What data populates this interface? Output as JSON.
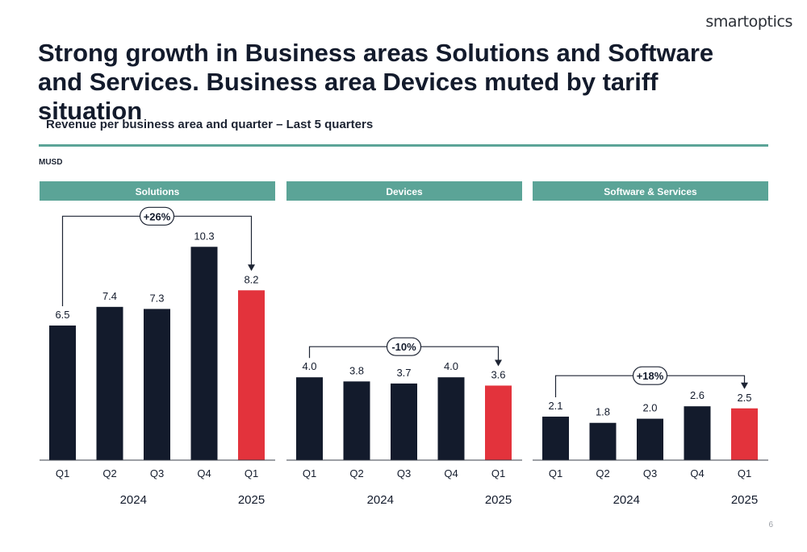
{
  "logo": "smartoptics",
  "title": "Strong growth in Business areas Solutions and Software and Services. Business area Devices muted by tariff situation",
  "subtitle": "Revenue per business area and quarter – Last 5 quarters",
  "unit": "MUSD",
  "page_number": "6",
  "colors": {
    "bar": "#131b2c",
    "highlight": "#e3333c",
    "header": "#5ba497",
    "header_text": "#ffffff",
    "text": "#131b2c"
  },
  "chart_data": [
    {
      "type": "bar",
      "title": "Solutions",
      "categories": [
        "Q1",
        "Q2",
        "Q3",
        "Q4",
        "Q1"
      ],
      "years": [
        {
          "label": "2024",
          "span": [
            0,
            3
          ]
        },
        {
          "label": "2025",
          "span": [
            4,
            4
          ]
        }
      ],
      "values": [
        6.5,
        7.4,
        7.3,
        10.3,
        8.2
      ],
      "value_labels": [
        "6.5",
        "7.4",
        "7.3",
        "10.3",
        "8.2"
      ],
      "highlight_index": 4,
      "growth": {
        "label": "+26%",
        "from_index": 0,
        "to_index": 4
      }
    },
    {
      "type": "bar",
      "title": "Devices",
      "categories": [
        "Q1",
        "Q2",
        "Q3",
        "Q4",
        "Q1"
      ],
      "years": [
        {
          "label": "2024",
          "span": [
            0,
            3
          ]
        },
        {
          "label": "2025",
          "span": [
            4,
            4
          ]
        }
      ],
      "values": [
        4.0,
        3.8,
        3.7,
        4.0,
        3.6
      ],
      "value_labels": [
        "4.0",
        "3.8",
        "3.7",
        "4.0",
        "3.6"
      ],
      "highlight_index": 4,
      "growth": {
        "label": "-10%",
        "from_index": 0,
        "to_index": 4
      }
    },
    {
      "type": "bar",
      "title": "Software & Services",
      "categories": [
        "Q1",
        "Q2",
        "Q3",
        "Q4",
        "Q1"
      ],
      "years": [
        {
          "label": "2024",
          "span": [
            0,
            3
          ]
        },
        {
          "label": "2025",
          "span": [
            4,
            4
          ]
        }
      ],
      "values": [
        2.1,
        1.8,
        2.0,
        2.6,
        2.5
      ],
      "value_labels": [
        "2.1",
        "1.8",
        "2.0",
        "2.6",
        "2.5"
      ],
      "highlight_index": 4,
      "growth": {
        "label": "+18%",
        "from_index": 0,
        "to_index": 4
      }
    }
  ]
}
